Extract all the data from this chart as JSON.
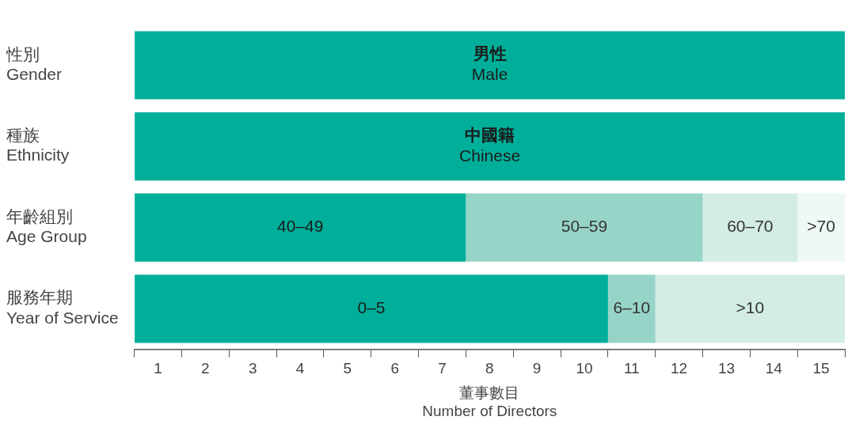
{
  "chart_data": {
    "type": "bar",
    "orientation": "horizontal",
    "stacked": true,
    "xlabel": "董事數目\nNumber of Directors",
    "categories": [
      "性別\nGender",
      "種族\nEthnicity",
      "年齡組別\nAge Group",
      "服務年期\nYear of Service"
    ],
    "series": [
      {
        "color": "#00af9a",
        "values": [
          15,
          15,
          7,
          10
        ],
        "value_labels": [
          "男性\nMale",
          "中國籍\nChinese",
          "40–49",
          "0–5"
        ]
      },
      {
        "color": "#97d4c8",
        "values": [
          null,
          null,
          5,
          1
        ],
        "value_labels": [
          null,
          null,
          "50–59",
          "6–10"
        ]
      },
      {
        "color": "#d3ece6",
        "values": [
          null,
          null,
          2,
          4
        ],
        "value_labels": [
          null,
          null,
          "60–70",
          ">10"
        ]
      },
      {
        "color": "#eef8f6",
        "values": [
          null,
          null,
          1,
          null
        ],
        "value_labels": [
          null,
          null,
          ">70",
          null
        ]
      }
    ],
    "xlim": [
      0,
      15
    ],
    "xticks": [
      {
        "value": 0,
        "label": null
      },
      {
        "value": 0.5,
        "label": "1"
      },
      {
        "value": 1,
        "label": null
      },
      {
        "value": 1.5,
        "label": "2"
      },
      {
        "value": 2,
        "label": null
      },
      {
        "value": 2.5,
        "label": "3"
      },
      {
        "value": 3,
        "label": null
      },
      {
        "value": 3.5,
        "label": "4"
      },
      {
        "value": 4,
        "label": null
      },
      {
        "value": 4.5,
        "label": "5"
      },
      {
        "value": 5,
        "label": null
      },
      {
        "value": 5.5,
        "label": "6"
      },
      {
        "value": 6,
        "label": null
      },
      {
        "value": 6.5,
        "label": "7"
      },
      {
        "value": 7,
        "label": null
      },
      {
        "value": 7.5,
        "label": "8"
      },
      {
        "value": 8,
        "label": null
      },
      {
        "value": 8.5,
        "label": "9"
      },
      {
        "value": 9,
        "label": null
      },
      {
        "value": 9.5,
        "label": "10"
      },
      {
        "value": 10,
        "label": null
      },
      {
        "value": 10.5,
        "label": "11"
      },
      {
        "value": 11,
        "label": null
      },
      {
        "value": 11.5,
        "label": "12"
      },
      {
        "value": 12,
        "label": null
      },
      {
        "value": 12.5,
        "label": "13"
      },
      {
        "value": 13,
        "label": null
      },
      {
        "value": 13.5,
        "label": "14"
      },
      {
        "value": 14,
        "label": null
      },
      {
        "value": 14.5,
        "label": "15"
      },
      {
        "value": 15,
        "label": null
      }
    ],
    "grid": false,
    "legend": false
  }
}
